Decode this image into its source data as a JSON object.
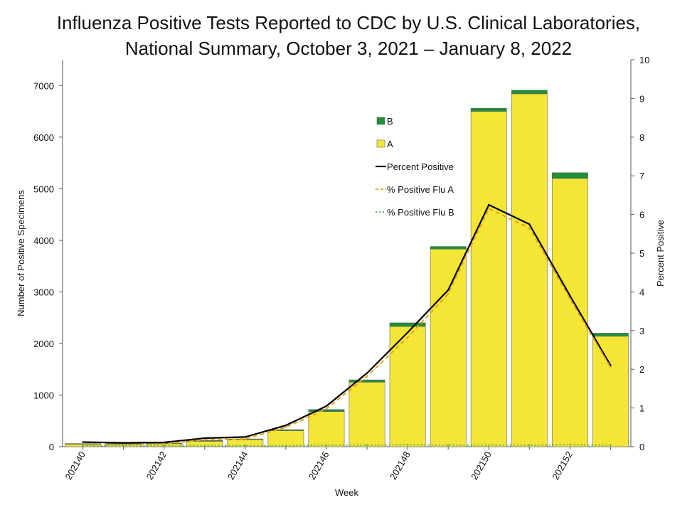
{
  "chart_data": {
    "type": "bar",
    "title_line1": "Influenza Positive Tests Reported to CDC by U.S. Clinical Laboratories,",
    "title_line2": "National Summary, October 3, 2021 – January 8, 2022",
    "xlabel": "Week",
    "ylabel": "Number of Positive Specimens",
    "y2label": "Percent Positive",
    "weeks": [
      "202140",
      "202141",
      "202142",
      "202143",
      "202144",
      "202145",
      "202146",
      "202147",
      "202148",
      "202149",
      "202150",
      "202151",
      "202152",
      "202201"
    ],
    "x_tick_labels": [
      "202140",
      "202142",
      "202144",
      "202146",
      "202148",
      "202150",
      "202152"
    ],
    "ylim": [
      0,
      7500
    ],
    "yticks": [
      0,
      1000,
      2000,
      3000,
      4000,
      5000,
      6000,
      7000
    ],
    "y2lim": [
      0,
      10
    ],
    "y2ticks": [
      0,
      1,
      2,
      3,
      4,
      5,
      6,
      7,
      8,
      9,
      10
    ],
    "series": [
      {
        "name": "B",
        "kind": "bar",
        "color": "#1f8f3a",
        "values": [
          12,
          12,
          12,
          15,
          15,
          20,
          40,
          45,
          70,
          50,
          60,
          70,
          110,
          60
        ]
      },
      {
        "name": "A",
        "kind": "bar",
        "color": "#f5e635",
        "values": [
          48,
          48,
          58,
          105,
          135,
          310,
          680,
          1250,
          2330,
          3830,
          6500,
          6840,
          5200,
          2140
        ]
      },
      {
        "name": "Percent Positive",
        "kind": "line",
        "color": "#000000",
        "values": [
          0.12,
          0.1,
          0.11,
          0.22,
          0.25,
          0.55,
          1.05,
          1.9,
          2.95,
          4.05,
          6.25,
          5.75,
          3.9,
          2.1
        ]
      },
      {
        "name": "% Positive Flu A",
        "kind": "line",
        "color": "#e8a317",
        "values": [
          0.05,
          0.05,
          0.07,
          0.18,
          0.2,
          0.5,
          0.98,
          1.82,
          2.82,
          3.95,
          6.15,
          5.65,
          3.82,
          2.05
        ]
      },
      {
        "name": "% Positive Flu B",
        "kind": "line",
        "color": "#5cb85c",
        "values": [
          0.03,
          0.03,
          0.03,
          0.03,
          0.03,
          0.03,
          0.04,
          0.04,
          0.05,
          0.04,
          0.04,
          0.04,
          0.05,
          0.04
        ]
      }
    ],
    "legend": [
      "B",
      "A",
      "Percent Positive",
      "% Positive Flu A",
      "% Positive Flu B"
    ],
    "legend_position": "upper-right-inside"
  }
}
